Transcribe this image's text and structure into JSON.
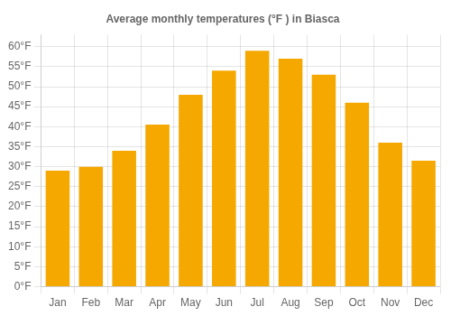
{
  "chart_data": {
    "type": "bar",
    "title": "Average monthly temperatures (°F ) in Biasca",
    "categories": [
      "Jan",
      "Feb",
      "Mar",
      "Apr",
      "May",
      "Jun",
      "Jul",
      "Aug",
      "Sep",
      "Oct",
      "Nov",
      "Dec"
    ],
    "values": [
      29,
      30,
      34,
      40.5,
      48,
      54,
      59,
      57,
      53,
      46,
      36,
      31.5
    ],
    "color": "#F5A800",
    "ylim": [
      0,
      63
    ],
    "yticks": [
      {
        "value": 0,
        "label": "0°F"
      },
      {
        "value": 5,
        "label": "5°F"
      },
      {
        "value": 10,
        "label": "10°F"
      },
      {
        "value": 15,
        "label": "15°F"
      },
      {
        "value": 20,
        "label": "20°F"
      },
      {
        "value": 25,
        "label": "25°F"
      },
      {
        "value": 30,
        "label": "30°F"
      },
      {
        "value": 35,
        "label": "35°F"
      },
      {
        "value": 40,
        "label": "40°F"
      },
      {
        "value": 45,
        "label": "45°F"
      },
      {
        "value": 50,
        "label": "50°F"
      },
      {
        "value": 55,
        "label": "55°F"
      },
      {
        "value": 60,
        "label": "60°F"
      }
    ],
    "grid": true
  }
}
